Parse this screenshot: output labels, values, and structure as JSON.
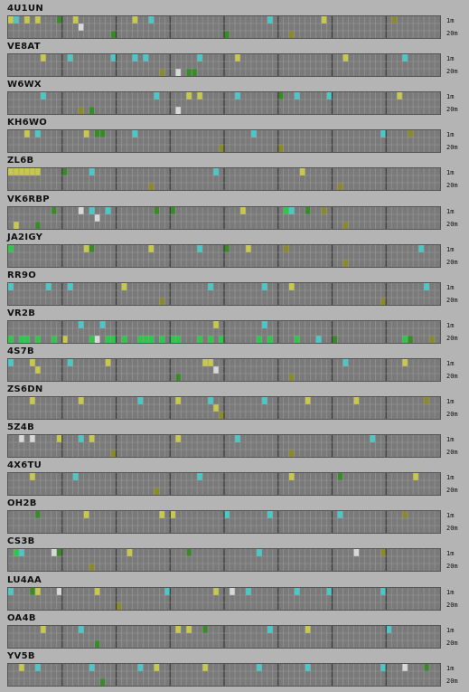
{
  "bands": {
    "top": "1m",
    "bottom": "20m"
  },
  "colors": {
    "background": "#b4b4b4",
    "cell": "#7a7a7a",
    "gridline": "#9a9a9a",
    "hour_divider": "#3a3a3a",
    "spot_yellow": "#c8c84a",
    "spot_cyan": "#4ac8c8",
    "spot_green": "#2cc84a",
    "spot_darkgreen": "#3a8a2a",
    "spot_white": "#d8d8d8",
    "spot_olive": "#8a8a2a"
  },
  "stations": [
    {
      "call": "4U1UN",
      "spots": [
        [
          0,
          0,
          "yellow"
        ],
        [
          1,
          0,
          "cyan"
        ],
        [
          3,
          0,
          "yellow"
        ],
        [
          5,
          0,
          "yellow"
        ],
        [
          9,
          0,
          "darkgreen"
        ],
        [
          12,
          0,
          "yellow"
        ],
        [
          13,
          1,
          "white"
        ],
        [
          19,
          2,
          "darkgreen"
        ],
        [
          23,
          0,
          "yellow"
        ],
        [
          26,
          0,
          "cyan"
        ],
        [
          40,
          2,
          "darkgreen"
        ],
        [
          48,
          0,
          "cyan"
        ],
        [
          52,
          2,
          "olive"
        ],
        [
          58,
          0,
          "yellow"
        ],
        [
          71,
          0,
          "olive"
        ]
      ]
    },
    {
      "call": "VE8AT",
      "spots": [
        [
          6,
          0,
          "yellow"
        ],
        [
          11,
          0,
          "cyan"
        ],
        [
          19,
          0,
          "cyan"
        ],
        [
          23,
          0,
          "cyan"
        ],
        [
          25,
          0,
          "cyan"
        ],
        [
          28,
          2,
          "olive"
        ],
        [
          31,
          2,
          "white"
        ],
        [
          33,
          2,
          "darkgreen"
        ],
        [
          34,
          2,
          "darkgreen"
        ],
        [
          35,
          0,
          "cyan"
        ],
        [
          42,
          0,
          "yellow"
        ],
        [
          62,
          0,
          "yellow"
        ],
        [
          73,
          0,
          "cyan"
        ]
      ]
    },
    {
      "call": "W6WX",
      "spots": [
        [
          6,
          0,
          "cyan"
        ],
        [
          13,
          2,
          "olive"
        ],
        [
          15,
          2,
          "darkgreen"
        ],
        [
          27,
          0,
          "cyan"
        ],
        [
          31,
          2,
          "white"
        ],
        [
          33,
          0,
          "yellow"
        ],
        [
          35,
          0,
          "yellow"
        ],
        [
          42,
          0,
          "cyan"
        ],
        [
          50,
          0,
          "darkgreen"
        ],
        [
          53,
          0,
          "cyan"
        ],
        [
          59,
          0,
          "cyan"
        ],
        [
          72,
          0,
          "yellow"
        ]
      ]
    },
    {
      "call": "KH6WO",
      "spots": [
        [
          3,
          0,
          "yellow"
        ],
        [
          5,
          0,
          "cyan"
        ],
        [
          14,
          0,
          "yellow"
        ],
        [
          16,
          0,
          "darkgreen"
        ],
        [
          17,
          0,
          "darkgreen"
        ],
        [
          23,
          0,
          "cyan"
        ],
        [
          39,
          2,
          "olive"
        ],
        [
          45,
          0,
          "cyan"
        ],
        [
          50,
          2,
          "olive"
        ],
        [
          69,
          0,
          "cyan"
        ],
        [
          74,
          0,
          "olive"
        ]
      ]
    },
    {
      "call": "ZL6B",
      "spots": [
        [
          0,
          0,
          "yellow"
        ],
        [
          1,
          0,
          "yellow"
        ],
        [
          2,
          0,
          "yellow"
        ],
        [
          3,
          0,
          "yellow"
        ],
        [
          4,
          0,
          "yellow"
        ],
        [
          5,
          0,
          "yellow"
        ],
        [
          10,
          0,
          "darkgreen"
        ],
        [
          15,
          0,
          "cyan"
        ],
        [
          26,
          2,
          "olive"
        ],
        [
          38,
          0,
          "cyan"
        ],
        [
          54,
          0,
          "yellow"
        ],
        [
          61,
          2,
          "olive"
        ]
      ]
    },
    {
      "call": "VK6RBP",
      "spots": [
        [
          1,
          2,
          "yellow"
        ],
        [
          5,
          2,
          "darkgreen"
        ],
        [
          8,
          0,
          "darkgreen"
        ],
        [
          13,
          0,
          "white"
        ],
        [
          15,
          0,
          "cyan"
        ],
        [
          16,
          1,
          "white"
        ],
        [
          18,
          0,
          "cyan"
        ],
        [
          27,
          0,
          "darkgreen"
        ],
        [
          30,
          0,
          "darkgreen"
        ],
        [
          43,
          0,
          "yellow"
        ],
        [
          51,
          0,
          "green"
        ],
        [
          52,
          0,
          "cyan"
        ],
        [
          55,
          0,
          "darkgreen"
        ],
        [
          58,
          0,
          "olive"
        ],
        [
          62,
          2,
          "olive"
        ]
      ]
    },
    {
      "call": "JA2IGY",
      "spots": [
        [
          0,
          0,
          "green"
        ],
        [
          14,
          0,
          "yellow"
        ],
        [
          15,
          0,
          "darkgreen"
        ],
        [
          26,
          0,
          "yellow"
        ],
        [
          35,
          0,
          "cyan"
        ],
        [
          40,
          0,
          "darkgreen"
        ],
        [
          44,
          0,
          "yellow"
        ],
        [
          51,
          0,
          "olive"
        ],
        [
          62,
          2,
          "olive"
        ],
        [
          76,
          0,
          "cyan"
        ]
      ]
    },
    {
      "call": "RR9O",
      "spots": [
        [
          0,
          0,
          "cyan"
        ],
        [
          7,
          0,
          "cyan"
        ],
        [
          11,
          0,
          "cyan"
        ],
        [
          21,
          0,
          "yellow"
        ],
        [
          28,
          2,
          "olive"
        ],
        [
          37,
          0,
          "cyan"
        ],
        [
          47,
          0,
          "cyan"
        ],
        [
          52,
          0,
          "yellow"
        ],
        [
          69,
          2,
          "olive"
        ],
        [
          77,
          0,
          "cyan"
        ]
      ]
    },
    {
      "call": "VR2B",
      "spots": [
        [
          0,
          2,
          "green"
        ],
        [
          2,
          2,
          "green"
        ],
        [
          3,
          2,
          "green"
        ],
        [
          5,
          2,
          "green"
        ],
        [
          8,
          2,
          "green"
        ],
        [
          10,
          2,
          "yellow"
        ],
        [
          13,
          0,
          "cyan"
        ],
        [
          15,
          2,
          "green"
        ],
        [
          16,
          2,
          "white"
        ],
        [
          17,
          0,
          "cyan"
        ],
        [
          18,
          2,
          "green"
        ],
        [
          19,
          2,
          "green"
        ],
        [
          21,
          2,
          "green"
        ],
        [
          24,
          2,
          "green"
        ],
        [
          25,
          2,
          "green"
        ],
        [
          26,
          2,
          "green"
        ],
        [
          28,
          2,
          "green"
        ],
        [
          30,
          2,
          "green"
        ],
        [
          31,
          2,
          "green"
        ],
        [
          35,
          2,
          "green"
        ],
        [
          37,
          2,
          "green"
        ],
        [
          38,
          0,
          "yellow"
        ],
        [
          39,
          2,
          "green"
        ],
        [
          46,
          2,
          "green"
        ],
        [
          47,
          0,
          "cyan"
        ],
        [
          48,
          2,
          "green"
        ],
        [
          53,
          2,
          "green"
        ],
        [
          57,
          2,
          "cyan"
        ],
        [
          60,
          2,
          "darkgreen"
        ],
        [
          73,
          2,
          "green"
        ],
        [
          74,
          2,
          "darkgreen"
        ],
        [
          78,
          2,
          "olive"
        ]
      ]
    },
    {
      "call": "4S7B",
      "spots": [
        [
          0,
          0,
          "cyan"
        ],
        [
          4,
          0,
          "yellow"
        ],
        [
          5,
          1,
          "yellow"
        ],
        [
          11,
          0,
          "cyan"
        ],
        [
          18,
          0,
          "yellow"
        ],
        [
          31,
          2,
          "darkgreen"
        ],
        [
          36,
          0,
          "yellow"
        ],
        [
          37,
          0,
          "yellow"
        ],
        [
          38,
          1,
          "white"
        ],
        [
          52,
          2,
          "olive"
        ],
        [
          62,
          0,
          "cyan"
        ],
        [
          73,
          0,
          "yellow"
        ]
      ]
    },
    {
      "call": "ZS6DN",
      "spots": [
        [
          4,
          0,
          "yellow"
        ],
        [
          13,
          0,
          "yellow"
        ],
        [
          24,
          0,
          "cyan"
        ],
        [
          31,
          0,
          "yellow"
        ],
        [
          37,
          0,
          "cyan"
        ],
        [
          38,
          1,
          "yellow"
        ],
        [
          39,
          2,
          "olive"
        ],
        [
          47,
          0,
          "cyan"
        ],
        [
          55,
          0,
          "yellow"
        ],
        [
          64,
          0,
          "yellow"
        ],
        [
          77,
          0,
          "olive"
        ]
      ]
    },
    {
      "call": "5Z4B",
      "spots": [
        [
          2,
          0,
          "white"
        ],
        [
          4,
          0,
          "white"
        ],
        [
          9,
          0,
          "yellow"
        ],
        [
          13,
          0,
          "cyan"
        ],
        [
          15,
          0,
          "yellow"
        ],
        [
          19,
          2,
          "olive"
        ],
        [
          31,
          0,
          "yellow"
        ],
        [
          42,
          0,
          "cyan"
        ],
        [
          52,
          2,
          "olive"
        ],
        [
          67,
          0,
          "cyan"
        ]
      ]
    },
    {
      "call": "4X6TU",
      "spots": [
        [
          4,
          0,
          "yellow"
        ],
        [
          12,
          0,
          "cyan"
        ],
        [
          27,
          2,
          "olive"
        ],
        [
          35,
          0,
          "cyan"
        ],
        [
          52,
          0,
          "yellow"
        ],
        [
          61,
          0,
          "darkgreen"
        ],
        [
          75,
          0,
          "yellow"
        ]
      ]
    },
    {
      "call": "OH2B",
      "spots": [
        [
          5,
          0,
          "darkgreen"
        ],
        [
          14,
          0,
          "yellow"
        ],
        [
          28,
          0,
          "yellow"
        ],
        [
          30,
          0,
          "yellow"
        ],
        [
          40,
          0,
          "cyan"
        ],
        [
          48,
          0,
          "cyan"
        ],
        [
          61,
          0,
          "cyan"
        ],
        [
          73,
          0,
          "olive"
        ]
      ]
    },
    {
      "call": "CS3B",
      "spots": [
        [
          1,
          0,
          "green"
        ],
        [
          2,
          0,
          "cyan"
        ],
        [
          8,
          0,
          "white"
        ],
        [
          9,
          0,
          "darkgreen"
        ],
        [
          15,
          2,
          "olive"
        ],
        [
          22,
          0,
          "yellow"
        ],
        [
          33,
          0,
          "darkgreen"
        ],
        [
          46,
          0,
          "cyan"
        ],
        [
          64,
          0,
          "white"
        ],
        [
          69,
          0,
          "olive"
        ]
      ]
    },
    {
      "call": "LU4AA",
      "spots": [
        [
          0,
          0,
          "cyan"
        ],
        [
          4,
          0,
          "darkgreen"
        ],
        [
          5,
          0,
          "yellow"
        ],
        [
          9,
          0,
          "white"
        ],
        [
          16,
          0,
          "yellow"
        ],
        [
          20,
          2,
          "olive"
        ],
        [
          29,
          0,
          "cyan"
        ],
        [
          38,
          0,
          "yellow"
        ],
        [
          41,
          0,
          "white"
        ],
        [
          44,
          0,
          "cyan"
        ],
        [
          53,
          0,
          "cyan"
        ],
        [
          59,
          0,
          "cyan"
        ],
        [
          69,
          0,
          "cyan"
        ]
      ]
    },
    {
      "call": "OA4B",
      "spots": [
        [
          6,
          0,
          "yellow"
        ],
        [
          13,
          0,
          "cyan"
        ],
        [
          16,
          2,
          "darkgreen"
        ],
        [
          31,
          0,
          "yellow"
        ],
        [
          33,
          0,
          "yellow"
        ],
        [
          36,
          0,
          "darkgreen"
        ],
        [
          48,
          0,
          "cyan"
        ],
        [
          55,
          0,
          "yellow"
        ],
        [
          70,
          0,
          "cyan"
        ]
      ]
    },
    {
      "call": "YV5B",
      "spots": [
        [
          2,
          0,
          "yellow"
        ],
        [
          5,
          0,
          "cyan"
        ],
        [
          15,
          0,
          "cyan"
        ],
        [
          17,
          2,
          "darkgreen"
        ],
        [
          24,
          0,
          "cyan"
        ],
        [
          27,
          0,
          "yellow"
        ],
        [
          36,
          0,
          "yellow"
        ],
        [
          46,
          0,
          "cyan"
        ],
        [
          55,
          0,
          "cyan"
        ],
        [
          69,
          0,
          "cyan"
        ],
        [
          73,
          0,
          "white"
        ],
        [
          77,
          0,
          "darkgreen"
        ]
      ]
    }
  ]
}
